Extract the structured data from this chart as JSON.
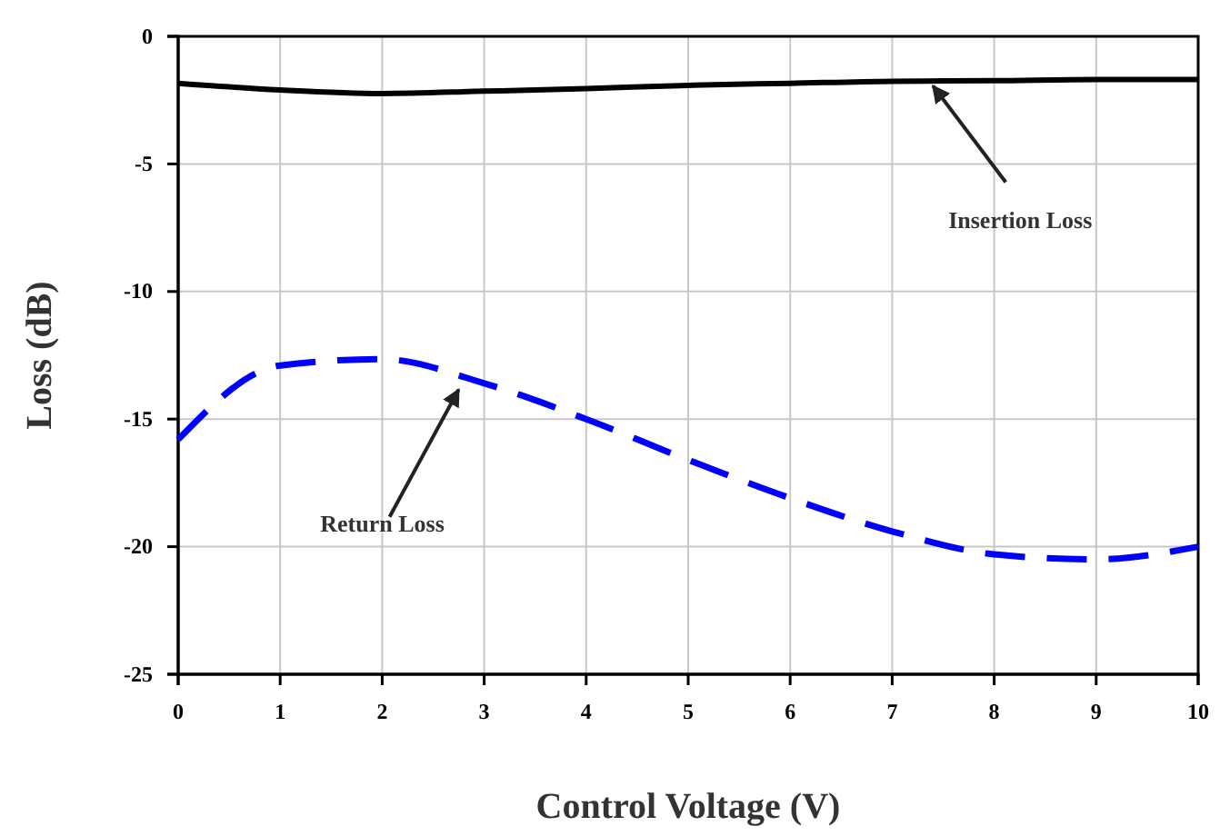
{
  "chart_data": {
    "type": "line",
    "xlabel": "Control Voltage (V)",
    "ylabel": "Loss (dB)",
    "x": [
      0,
      1,
      2,
      3,
      4,
      5,
      6,
      7,
      8,
      9,
      10
    ],
    "xlim": [
      0,
      10
    ],
    "xticks": [
      0,
      1,
      2,
      3,
      4,
      5,
      6,
      7,
      8,
      9,
      10
    ],
    "ylim": [
      -25,
      0
    ],
    "yticks": [
      -25,
      -20,
      -15,
      -10,
      -5,
      0
    ],
    "grid": true,
    "series": [
      {
        "color": "#000000",
        "line_style": "solid",
        "values": [
          -1.84,
          -2.1,
          -2.24,
          -2.15,
          -2.05,
          -1.92,
          -1.84,
          -1.76,
          -1.74,
          -1.69,
          -1.69
        ]
      },
      {
        "color": "#0000ff",
        "line_style": "dashed",
        "values": [
          -15.8,
          -12.9,
          -12.65,
          -13.6,
          -15.0,
          -16.6,
          -18.1,
          -19.4,
          -20.3,
          -20.5,
          -20.0
        ]
      }
    ],
    "annotations": [
      {
        "text": "Insertion Loss",
        "x": 7.4,
        "y": -1.8
      },
      {
        "text": "Return Loss",
        "x": 2.75,
        "y": -13.7
      }
    ]
  }
}
